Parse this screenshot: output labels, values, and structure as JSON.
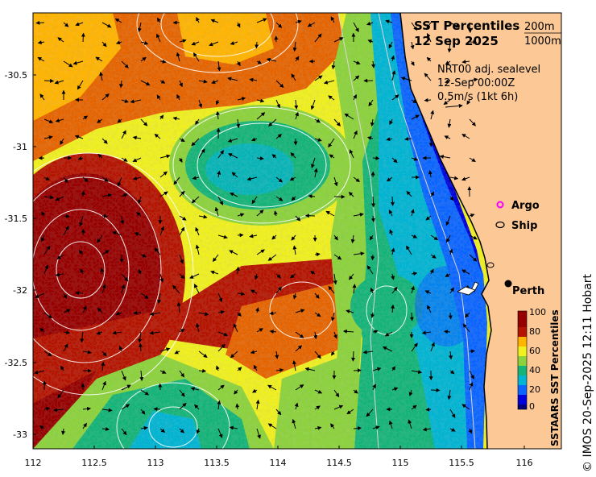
{
  "map": {
    "title": "SST Percentiles",
    "date": "12 Sep 2025",
    "contour_legend": [
      "200m",
      "1000m"
    ],
    "sealevel_product": "NRT00 adj. sealevel",
    "sealevel_time": "12-Sep 00:00Z",
    "arrow_scale": "0.5m/s (1kt 6h)",
    "legend_argo": "Argo",
    "legend_ship": "Ship",
    "place_perth": "Perth",
    "colorbar_title": "SSTAARS SST Percentiles",
    "colorbar_ticks": [
      "100",
      "80",
      "60",
      "40",
      "20",
      "0"
    ],
    "credit": "© IMOS 20-Sep-2025 12:11 Hobart",
    "x_ticks": [
      "112",
      "112.5",
      "113",
      "113.5",
      "114",
      "114.5",
      "115",
      "115.5",
      "116"
    ],
    "y_ticks": [
      "-30.5",
      "-31",
      "-31.5",
      "-32",
      "-32.5",
      "-33"
    ],
    "colors": {
      "land": "#fbc896",
      "p0": "#00007a",
      "p10": "#0000dc",
      "p20": "#0a64ff",
      "p30": "#00b4d2",
      "p40": "#14b478",
      "p50": "#8cd23c",
      "p60": "#f0f01e",
      "p70": "#ffb400",
      "p80": "#e66400",
      "p90": "#b41400",
      "p100": "#960000"
    }
  }
}
